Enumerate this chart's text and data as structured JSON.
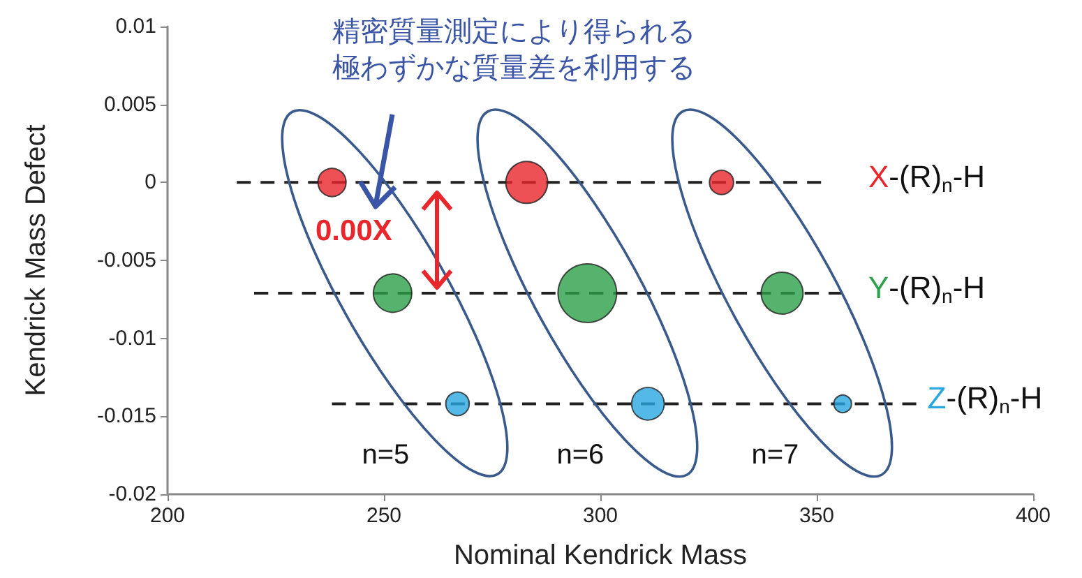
{
  "chart_data": {
    "type": "bubble",
    "xlabel": "Nominal Kendrick Mass",
    "ylabel": "Kendrick Mass Defect",
    "xlim": [
      200,
      400
    ],
    "xticks": [
      200,
      250,
      300,
      350,
      400
    ],
    "ylim": [
      -0.02,
      0.01
    ],
    "yticks": [
      -0.02,
      -0.015,
      -0.01,
      -0.005,
      0,
      0.005,
      0.01
    ],
    "legend": false,
    "grid": false,
    "series": [
      {
        "name": "X-(R)$_{n}$-H",
        "color": "#e8262b",
        "x": [
          238,
          283,
          328
        ],
        "values": [
          0,
          0,
          0
        ],
        "sizes": [
          0.23,
          0.51,
          0.17
        ]
      },
      {
        "name": "Y-(R)$_{n}$-H",
        "color": "#2ca04a",
        "x": [
          252,
          297,
          342
        ],
        "values": [
          -0.0071,
          -0.0071,
          -0.0071
        ],
        "sizes": [
          0.43,
          1,
          0.51
        ]
      },
      {
        "name": "Z-(R)$_{n}$-H",
        "color": "#29a8e0",
        "x": [
          267,
          311,
          356
        ],
        "values": [
          -0.0142,
          -0.0142,
          -0.0142
        ],
        "sizes": [
          0.16,
          0.31,
          0.09
        ]
      },
      {
        "type": "line",
        "color": "#222222",
        "line_style": "dashed",
        "marker": "none",
        "x": [
          216,
          351
        ],
        "values": [
          0,
          0
        ]
      },
      {
        "type": "line",
        "color": "#222222",
        "line_style": "dashed",
        "marker": "none",
        "x": [
          220,
          356
        ],
        "values": [
          -0.0071,
          -0.0071
        ]
      },
      {
        "type": "line",
        "color": "#222222",
        "line_style": "dashed",
        "marker": "none",
        "x": [
          238,
          373
        ],
        "values": [
          -0.0142,
          -0.0142
        ]
      }
    ],
    "annotations": [
      "精密質量測定により得られる極わずかな質量差を利用する",
      "0.00X",
      "n=5",
      "n=6",
      "n=7"
    ]
  }
}
